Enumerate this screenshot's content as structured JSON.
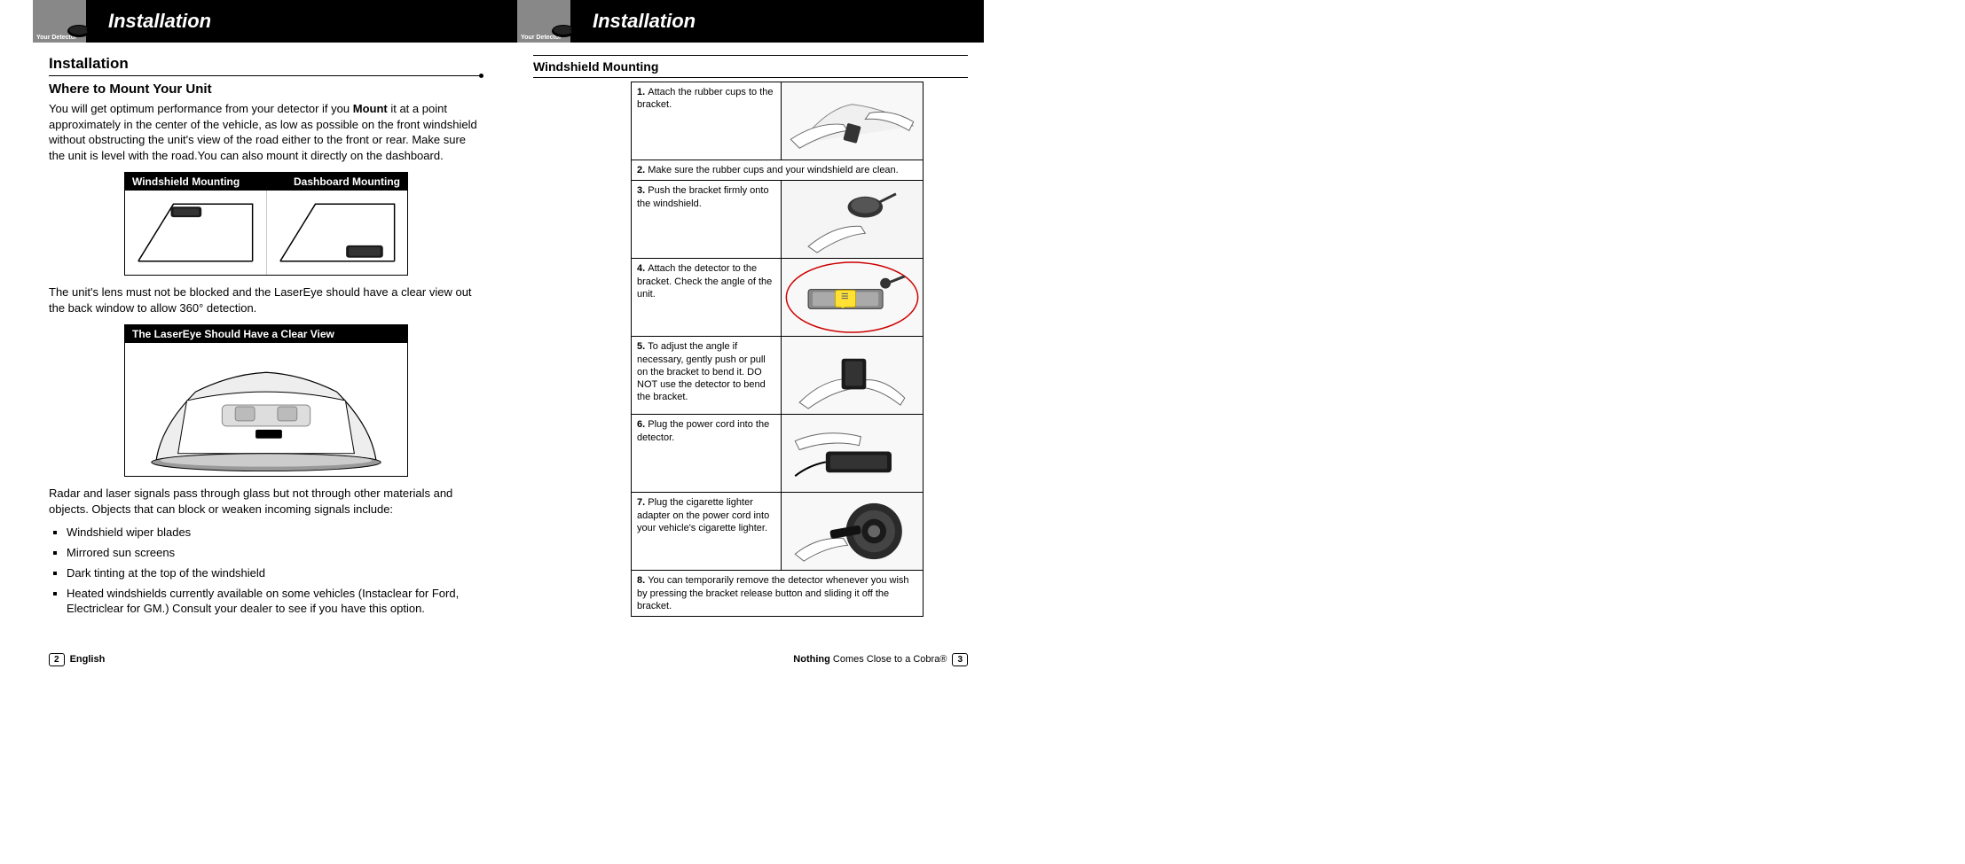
{
  "header": {
    "your_detector": "Your Detector",
    "title": "Installation"
  },
  "left": {
    "h_install": "Installation",
    "h_where": "Where to Mount Your Unit",
    "p1_a": "You will get optimum performance from your detector if you ",
    "p1_bold": "Mount",
    "p1_b": " it at a point approximately in the center of the vehicle, as low as possible on the front windshield without obstructing the unit's view of the road either to the front or rear. Make sure the unit is level with the road.You can also mount it directly on the dashboard.",
    "fig1_a": "Windshield Mounting",
    "fig1_b": "Dashboard Mounting",
    "p2": "The unit's lens must not be blocked and the LaserEye should have a clear view out the back window to allow 360° detection.",
    "fig2": "The LaserEye Should Have a Clear View",
    "p3": "Radar and laser signals pass through glass but not through other materials and objects. Objects that can block or weaken incoming signals include:",
    "bullets": [
      "Windshield wiper blades",
      "Mirrored sun screens",
      "Dark tinting at the top of the windshield",
      "Heated windshields currently available on some vehicles (Instaclear for Ford, Electriclear for GM.) Consult your dealer to see if you have this option."
    ],
    "page_num": "2",
    "footer": "English"
  },
  "right": {
    "h_wind": "Windshield Mounting",
    "steps": [
      {
        "n": "1.",
        "t": "Attach the rubber cups to the bracket.",
        "img": true,
        "tall": true
      },
      {
        "n": "2.",
        "t": "Make sure the rubber cups and your windshield are clean.",
        "img": false,
        "tall": false
      },
      {
        "n": "3.",
        "t": "Push the bracket firmly onto the windshield.",
        "img": true,
        "tall": true
      },
      {
        "n": "4.",
        "t": "Attach the detector to the bracket. Check the angle of the unit.",
        "img": true,
        "tall": true,
        "highlight": true
      },
      {
        "n": "5.",
        "t": "To adjust the angle if necessary, gently push or pull on the bracket to bend it. DO NOT use the detector to bend the bracket.",
        "img": true,
        "tall": true
      },
      {
        "n": "6.",
        "t": "Plug the power cord into the detector.",
        "img": true,
        "tall": true
      },
      {
        "n": "7.",
        "t": "Plug the cigarette lighter adapter on the power cord into your vehicle's cigarette lighter.",
        "img": true,
        "tall": true
      },
      {
        "n": "8.",
        "t": "You can temporarily remove the detector whenever you wish by pressing the bracket release button and sliding it off the bracket.",
        "img": false,
        "tall": false
      }
    ],
    "page_num": "3",
    "footer_bold": "Nothing",
    "footer_rest": " Comes Close to a Cobra®"
  }
}
